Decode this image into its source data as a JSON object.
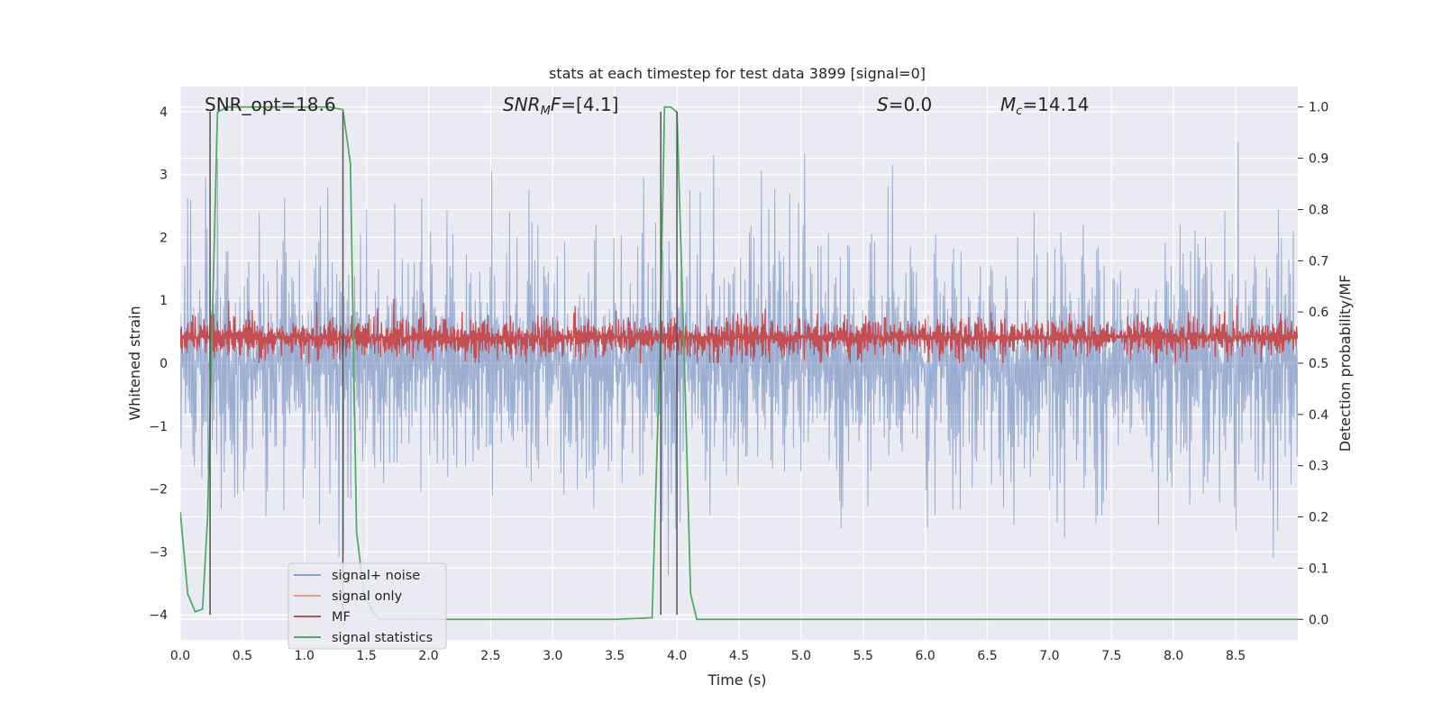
{
  "chart_data": {
    "type": "line",
    "title": "stats at each timestep for test data 3899 [signal=0]",
    "xlabel": "Time (s)",
    "ylabel_left": "Whitened strain",
    "ylabel_right": "Detection probability/MF",
    "xlim": [
      0,
      9
    ],
    "ylim_left": [
      -4.4,
      4.4
    ],
    "ylim_right": [
      -0.04,
      1.04
    ],
    "x_ticks": [
      "0.0",
      "0.5",
      "1.0",
      "1.5",
      "2.0",
      "2.5",
      "3.0",
      "3.5",
      "4.0",
      "4.5",
      "5.0",
      "5.5",
      "6.0",
      "6.5",
      "7.0",
      "7.5",
      "8.0",
      "8.5"
    ],
    "y_ticks_left": [
      "−4",
      "−3",
      "−2",
      "−1",
      "0",
      "1",
      "2",
      "3",
      "4"
    ],
    "y_ticks_right": [
      "0.0",
      "0.1",
      "0.2",
      "0.3",
      "0.4",
      "0.5",
      "0.6",
      "0.7",
      "0.8",
      "0.9",
      "1.0"
    ],
    "grid": true,
    "legend_position": "lower-left",
    "annotations": [
      {
        "key": "snr_opt",
        "text": "SNR_opt=18.6",
        "x": 0.19,
        "y": 4.05
      },
      {
        "key": "snr_mf",
        "text": "=[4.1]",
        "x": 2.6,
        "y": 4.05
      },
      {
        "key": "s",
        "text": "=0.0",
        "x": 5.6,
        "y": 4.05
      },
      {
        "key": "mc",
        "text": "=14.14",
        "x": 6.6,
        "y": 4.05
      }
    ],
    "series": [
      {
        "name": "signal+ noise",
        "color": "#4c72b0",
        "opacity": 0.5,
        "axis": "left",
        "style": "dense noise",
        "range": [
          -3.5,
          4.0
        ]
      },
      {
        "name": "signal only",
        "color": "#dd8452",
        "axis": "left",
        "values": []
      },
      {
        "name": "MF",
        "color": "#c44e52",
        "axis": "right",
        "style": "dense noise",
        "range": [
          0.5,
          0.63
        ]
      },
      {
        "name": "signal statistics",
        "color": "#55a868",
        "axis": "right",
        "x": [
          0.0,
          0.06,
          0.12,
          0.18,
          0.22,
          0.25,
          0.3,
          0.38,
          0.5,
          0.7,
          1.0,
          1.2,
          1.31,
          1.37,
          1.42,
          1.48,
          1.54,
          1.6,
          1.7,
          2.0,
          2.5,
          3.0,
          3.5,
          3.8,
          3.86,
          3.9,
          3.95,
          4.0,
          4.06,
          4.11,
          4.16,
          4.3,
          5.0,
          6.0,
          7.0,
          8.0,
          9.0
        ],
        "y": [
          0.21,
          0.05,
          0.015,
          0.02,
          0.2,
          0.5,
          0.99,
          1.0,
          1.0,
          1.0,
          1.0,
          1.0,
          0.995,
          0.89,
          0.17,
          0.05,
          0.02,
          0.0,
          0.0,
          0.0,
          0.0,
          0.0,
          0.0,
          0.003,
          0.5,
          1.0,
          1.0,
          0.99,
          0.5,
          0.05,
          0.0,
          0.0,
          0.0,
          0.0,
          0.0,
          0.0,
          0.0
        ]
      }
    ],
    "vertical_lines": {
      "color": "#555555",
      "x": [
        0.24,
        1.31,
        3.87,
        4.0
      ]
    }
  },
  "legend": [
    {
      "label": "signal+ noise",
      "color": "#4c72b0",
      "opacity": 0.6
    },
    {
      "label": "signal only",
      "color": "#dd8452",
      "opacity": 0.7
    },
    {
      "label": "MF",
      "color": "#c44e52",
      "opacity": 1
    },
    {
      "label": "signal statistics",
      "color": "#55a868",
      "opacity": 1
    }
  ]
}
